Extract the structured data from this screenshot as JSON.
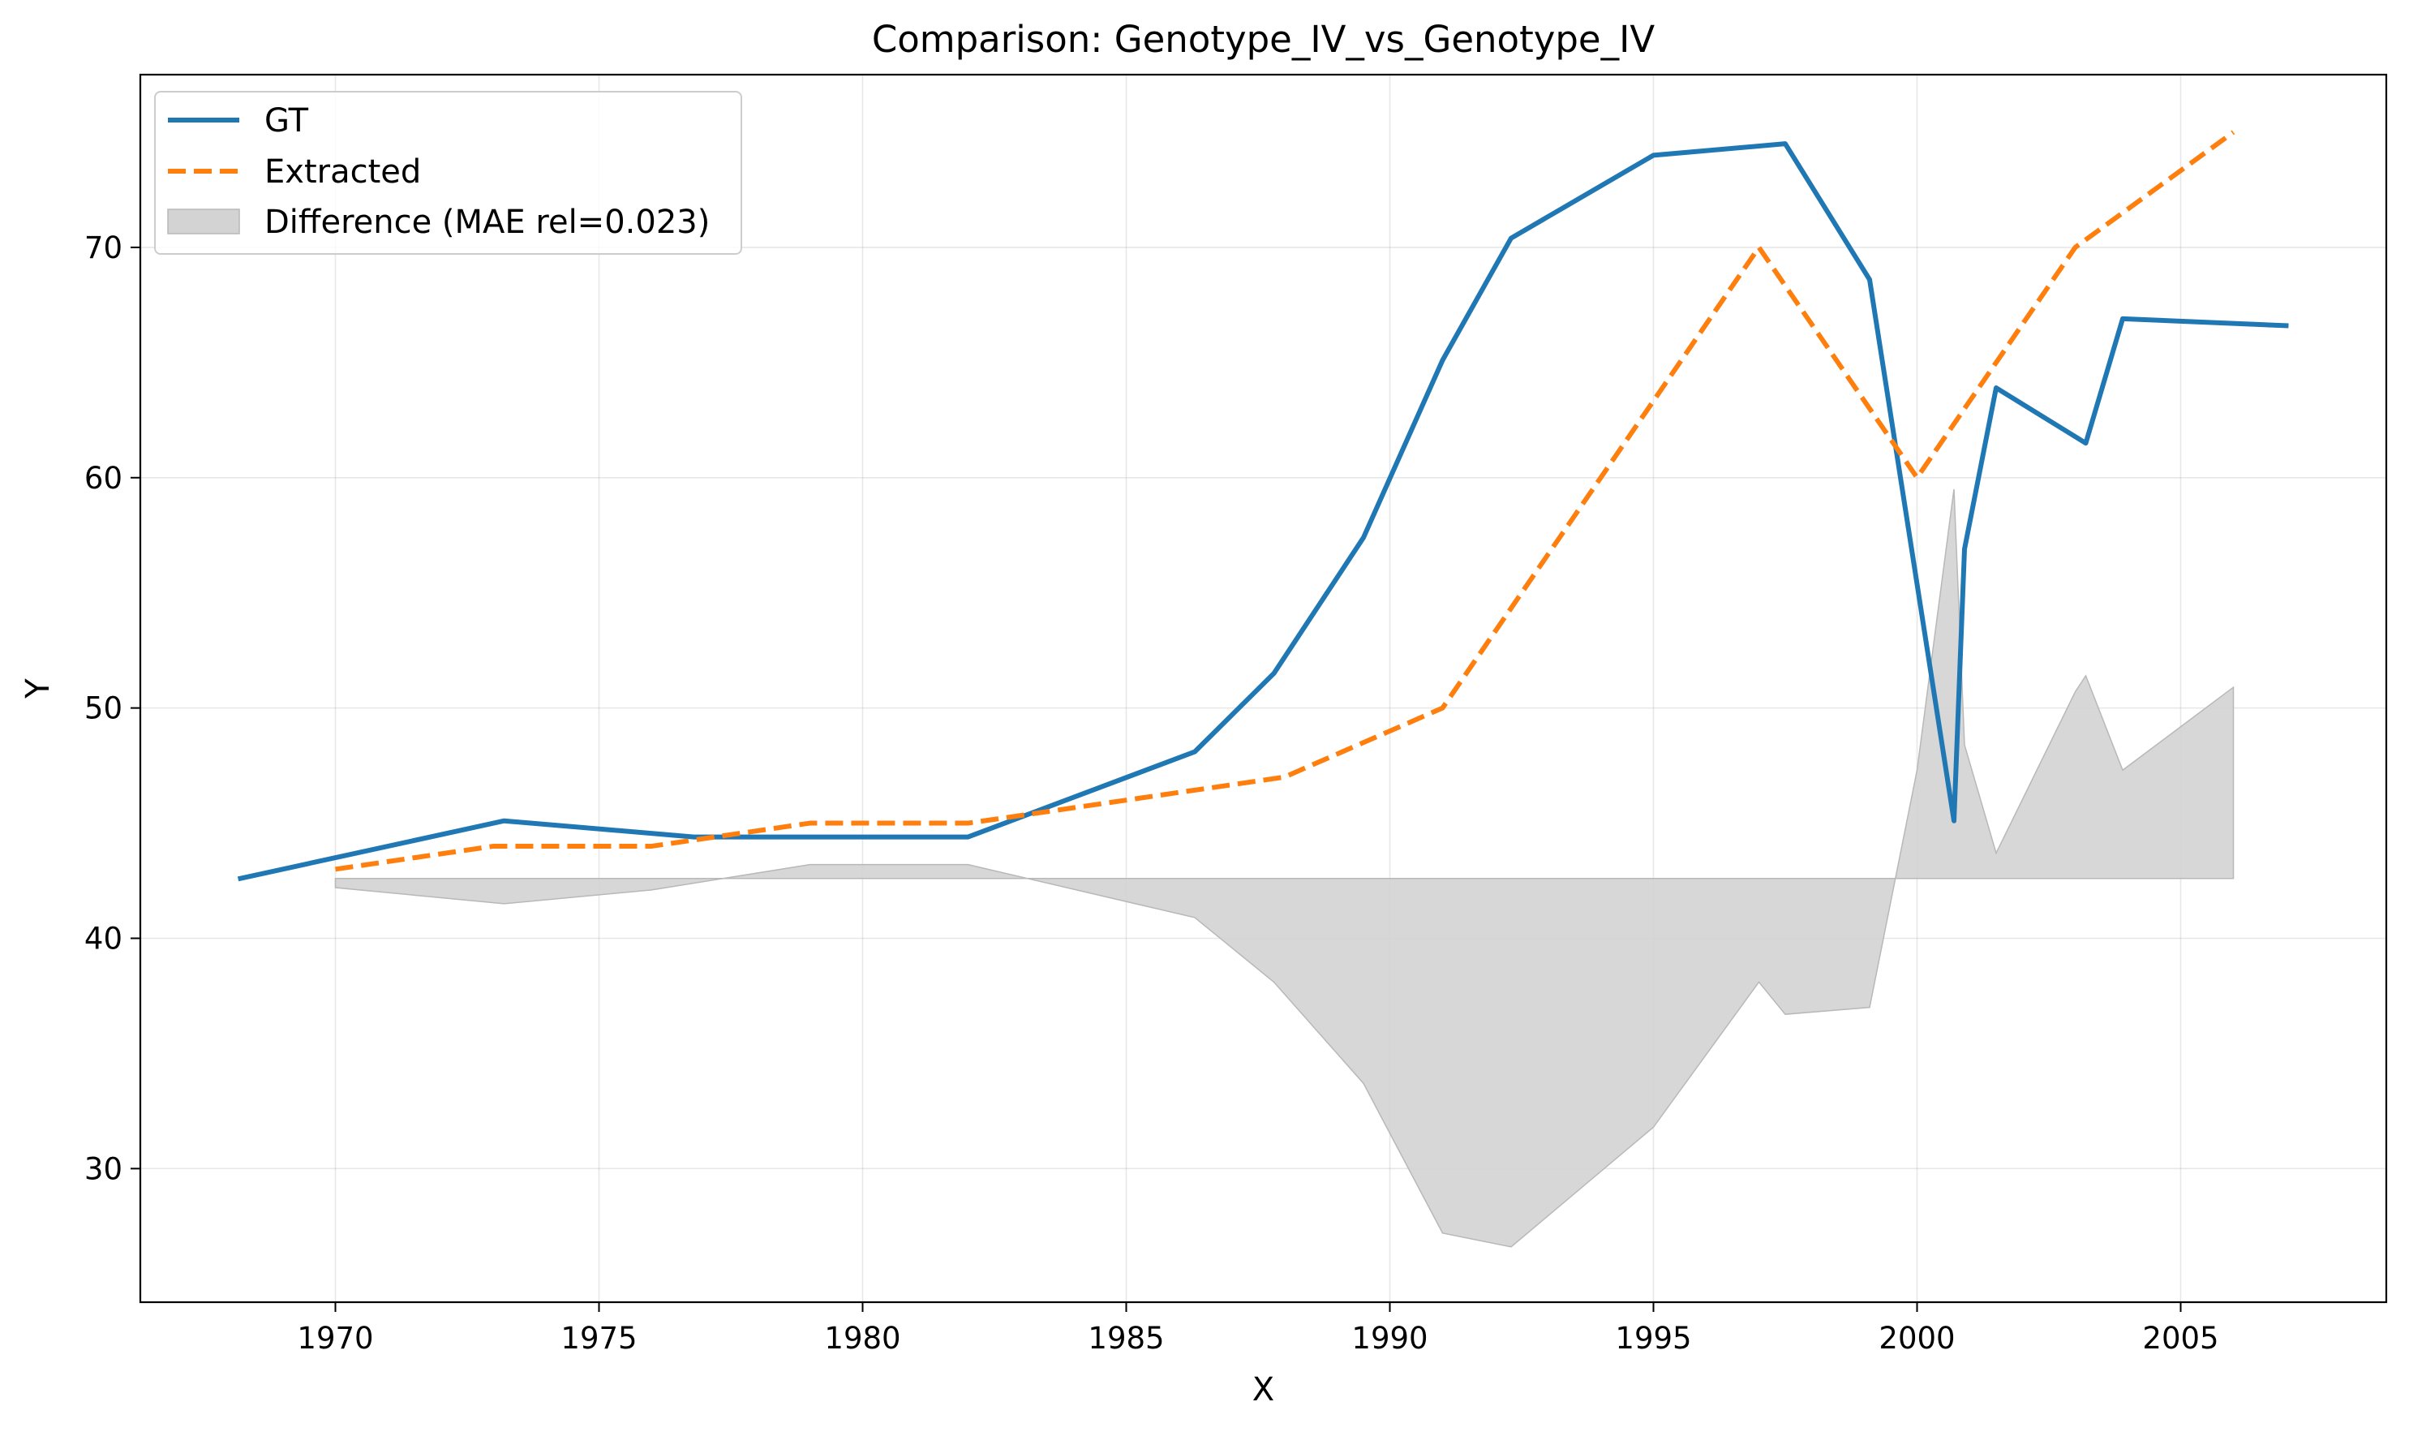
{
  "chart_data": {
    "type": "line",
    "title": "Comparison: Genotype_IV_vs_Genotype_IV",
    "xlabel": "X",
    "ylabel": "Y",
    "xlim": [
      1966.3,
      2008.9
    ],
    "ylim": [
      24.2,
      77.5
    ],
    "xticks": [
      1970,
      1975,
      1980,
      1985,
      1990,
      1995,
      2000,
      2005
    ],
    "yticks": [
      30,
      40,
      50,
      60,
      70
    ],
    "grid": true,
    "legend_position": "upper-left",
    "series": [
      {
        "name": "GT",
        "style": "solid",
        "color": "#1f77b4",
        "x": [
          1968.2,
          1973.2,
          1976.8,
          1982.0,
          1986.3,
          1987.8,
          1989.5,
          1991.0,
          1992.3,
          1995.0,
          1997.5,
          1999.1,
          2000.7,
          2000.9,
          2001.5,
          2003.2,
          2003.9,
          2007.0
        ],
        "y": [
          42.6,
          45.1,
          44.4,
          44.4,
          48.1,
          51.5,
          57.4,
          65.1,
          70.4,
          74.0,
          74.5,
          68.6,
          45.1,
          56.9,
          63.9,
          61.5,
          66.9,
          66.6
        ]
      },
      {
        "name": "Extracted",
        "style": "dashed",
        "color": "#ff7f0e",
        "x": [
          1970.0,
          1973.0,
          1976.0,
          1979.0,
          1982.0,
          1985.0,
          1988.0,
          1991.0,
          1994.0,
          1997.0,
          2000.0,
          2003.0,
          2006.0
        ],
        "y": [
          43.0,
          44.0,
          44.0,
          45.0,
          45.0,
          46.0,
          47.0,
          50.0,
          60.0,
          70.0,
          60.0,
          70.0,
          75.0
        ]
      },
      {
        "name": "Difference (MAE rel=0.023)",
        "style": "fill",
        "color": "#d3d3d3",
        "baseline": 42.6,
        "x": [
          1970.0,
          1973.2,
          1976.0,
          1979.0,
          1982.0,
          1986.3,
          1987.8,
          1989.5,
          1991.0,
          1992.3,
          1995.0,
          1997.0,
          1997.5,
          1999.1,
          2000.0,
          2000.7,
          2000.9,
          2001.5,
          2003.0,
          2003.2,
          2003.9,
          2006.0
        ],
        "y": [
          42.2,
          41.5,
          42.1,
          43.2,
          43.2,
          40.9,
          38.1,
          33.7,
          27.2,
          26.6,
          31.8,
          38.1,
          36.7,
          37.0,
          47.3,
          59.5,
          48.4,
          43.7,
          50.7,
          51.4,
          47.3,
          50.9
        ]
      }
    ]
  }
}
